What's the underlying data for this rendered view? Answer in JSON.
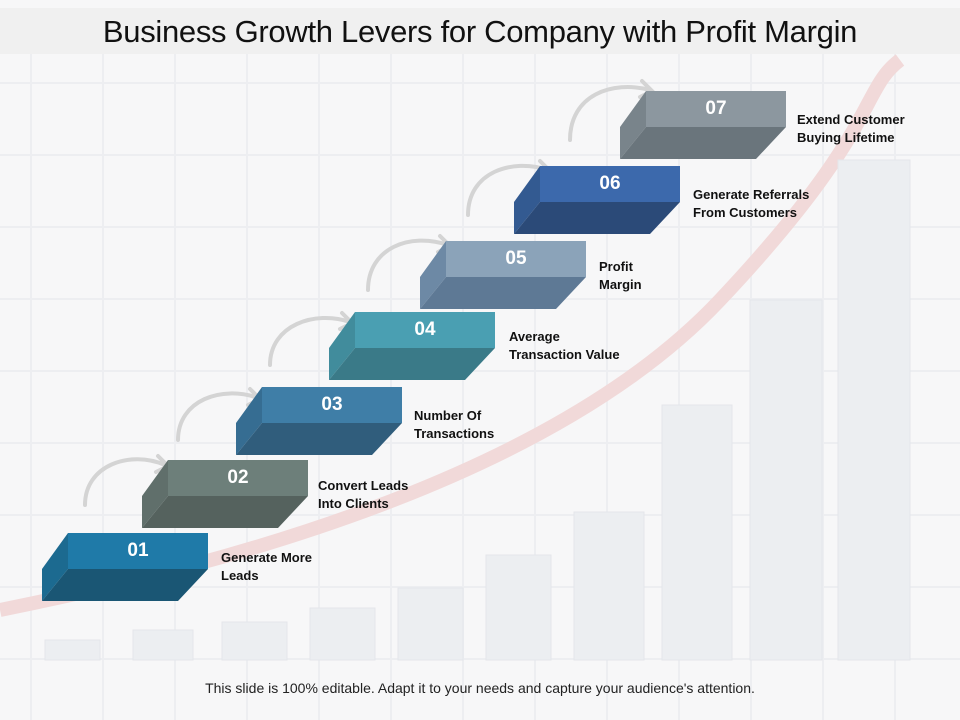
{
  "title": "Business Growth Levers for Company with Profit Margin",
  "footer": "This slide is 100% editable. Adapt it to your needs and capture your audience's attention.",
  "steps": [
    {
      "number": "01",
      "label": "Generate More\nLeads",
      "top": "#1f7aa8",
      "front": "#1a5674",
      "side": "#1c6a90"
    },
    {
      "number": "02",
      "label": "Convert Leads\nInto Clients",
      "top": "#6d7f7a",
      "front": "#55625e",
      "side": "#606f6b"
    },
    {
      "number": "03",
      "label": "Number Of\nTransactions",
      "top": "#3f7ea7",
      "front": "#305d7c",
      "side": "#366d92"
    },
    {
      "number": "04",
      "label": "Average\nTransaction Value",
      "top": "#4a9fb2",
      "front": "#3a7a88",
      "side": "#418c9c"
    },
    {
      "number": "05",
      "label": "Profit\nMargin",
      "top": "#8ba3b9",
      "front": "#5e7995",
      "side": "#6d89a5"
    },
    {
      "number": "06",
      "label": "Generate Referrals\nFrom Customers",
      "top": "#3c69ac",
      "front": "#2b4a78",
      "side": "#335a91"
    },
    {
      "number": "07",
      "label": "Extend Customer\nBuying Lifetime",
      "top": "#8c979f",
      "front": "#6a757c",
      "side": "#79848b"
    }
  ]
}
